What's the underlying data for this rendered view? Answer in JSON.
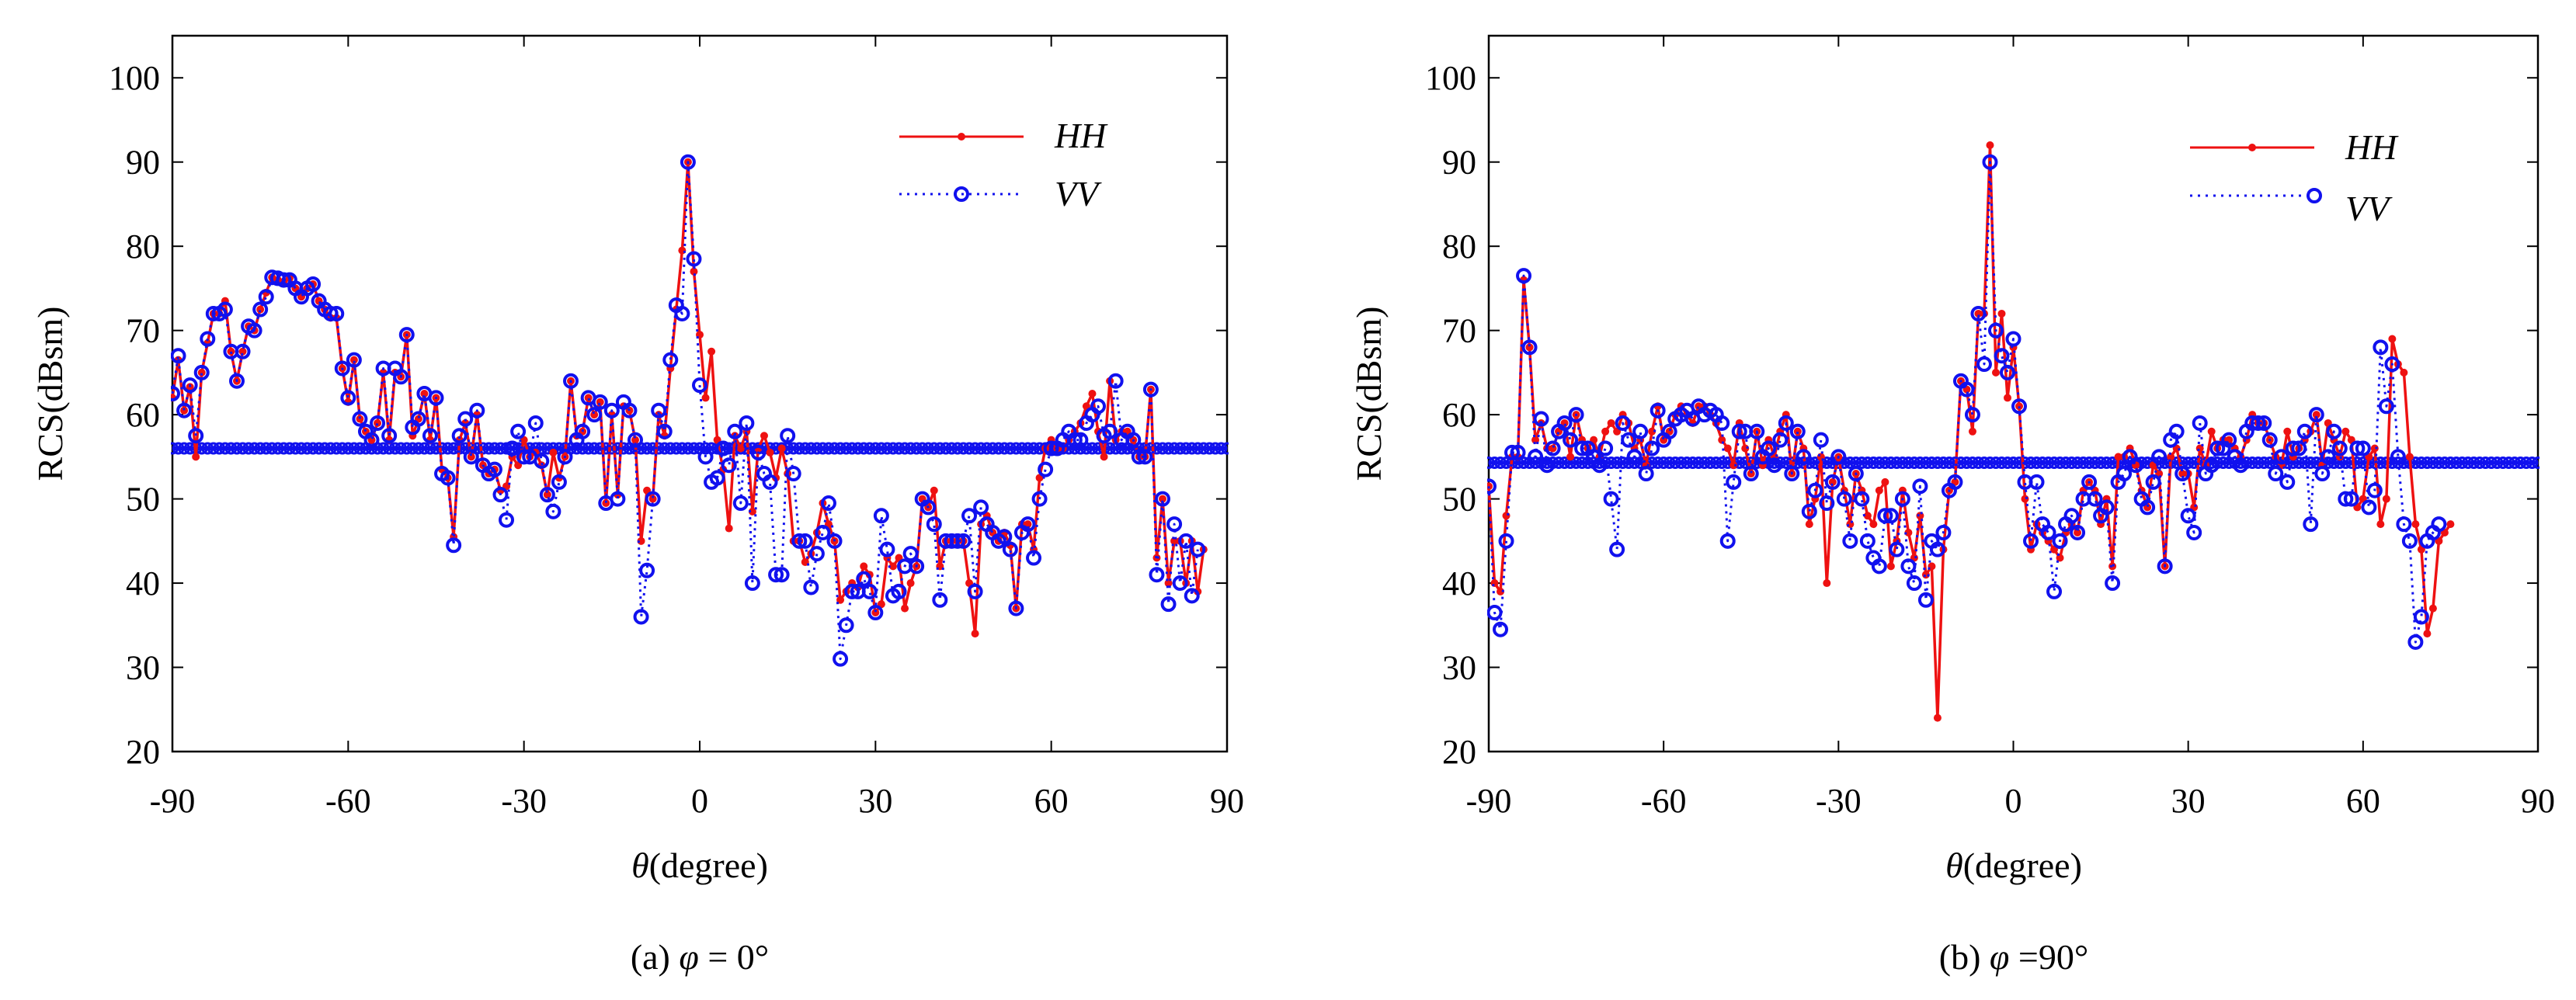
{
  "chart_data": [
    {
      "type": "line",
      "caption": "(a) φ = 0°",
      "caption_prefix": "(a)",
      "caption_symbol": "φ",
      "caption_suffix": " = 0°",
      "xlabel": "θ(degree)",
      "xlabel_symbol": "θ",
      "xlabel_rest": "(degree)",
      "ylabel": "RCS(dBsm)",
      "xlim": [
        -90,
        90
      ],
      "ylim": [
        20,
        105
      ],
      "xticks": [
        -90,
        -60,
        -30,
        0,
        30,
        60,
        90
      ],
      "yticks": [
        20,
        30,
        40,
        50,
        60,
        70,
        80,
        90,
        100
      ],
      "grid": false,
      "legend_position": "top-right",
      "baseline": 56,
      "x_step": 1,
      "series": [
        {
          "name": "HH",
          "color": "#ee1111",
          "style": "solid",
          "marker": "dot",
          "values": [
            62,
            66.5,
            60.5,
            63.3,
            55,
            65,
            68.5,
            72,
            72,
            73.5,
            67.5,
            64,
            67.5,
            70.5,
            70,
            72.5,
            74.5,
            76.3,
            76,
            75.8,
            76.2,
            75,
            74,
            75,
            75.5,
            73.5,
            72.5,
            71.5,
            71.5,
            65.5,
            61.5,
            66.5,
            59.5,
            58,
            57,
            59,
            65,
            57,
            65,
            64.5,
            69.5,
            57.5,
            59.5,
            62.5,
            57,
            62,
            53.5,
            52.5,
            45.5,
            57,
            59,
            55,
            60,
            54,
            53,
            53.5,
            51,
            51.5,
            55,
            54,
            57,
            55,
            55.5,
            54,
            50.5,
            55.5,
            52.5,
            55,
            64,
            57.5,
            58,
            62,
            60,
            61.5,
            49.5,
            60,
            50.5,
            61,
            60.5,
            57,
            45,
            51,
            50,
            60,
            57.5,
            65.5,
            72.5,
            79.5,
            90,
            77,
            69.5,
            62,
            67.5,
            57,
            53.5,
            46.5,
            57.5,
            56,
            58,
            48.5,
            56,
            57.5,
            55.5,
            52.5,
            56,
            53,
            45,
            45,
            42.5,
            43.5,
            46,
            49.5,
            47,
            45,
            38,
            39,
            40,
            39.5,
            42,
            41,
            36.5,
            37.5,
            43,
            42,
            43,
            37,
            40,
            42,
            50,
            49,
            51,
            42,
            45,
            45,
            45,
            45,
            40,
            34,
            47,
            48,
            46,
            45,
            46,
            44.5,
            37,
            47,
            47,
            44,
            52.5,
            56,
            57,
            56,
            56,
            57,
            58,
            59,
            61,
            62.5,
            58,
            55,
            64,
            57,
            58,
            58,
            57,
            55,
            55,
            63,
            43,
            50,
            40,
            45,
            45,
            40,
            45,
            39,
            44
          ]
        },
        {
          "name": "VV",
          "color": "#1111ee",
          "style": "dotted",
          "marker": "circle",
          "values": [
            62.5,
            67,
            60.5,
            63.5,
            57.5,
            65,
            69,
            72,
            72,
            72.5,
            67.5,
            64,
            67.5,
            70.5,
            70,
            72.5,
            74,
            76.3,
            76.2,
            76,
            76,
            75,
            74,
            75,
            75.5,
            73.5,
            72.5,
            72,
            72,
            65.5,
            62,
            66.5,
            59.5,
            58,
            57,
            59,
            65.5,
            57.5,
            65.5,
            64.5,
            69.5,
            58.5,
            59.5,
            62.5,
            57.5,
            62,
            53,
            52.5,
            44.5,
            57.5,
            59.5,
            55,
            60.5,
            54,
            53,
            53.5,
            50.5,
            47.5,
            56,
            58,
            55,
            55,
            59,
            54.5,
            50.5,
            48.5,
            52,
            55,
            64,
            57,
            58,
            62,
            60,
            61.5,
            49.5,
            60.5,
            50,
            61.5,
            60.5,
            57,
            36,
            41.5,
            50,
            60.5,
            58,
            66.5,
            73,
            72,
            90,
            78.5,
            63.5,
            55,
            52,
            52.5,
            56,
            54,
            58,
            49.5,
            59,
            40,
            55.5,
            53,
            52,
            41,
            41,
            57.5,
            53,
            45,
            45,
            39.5,
            43.5,
            46,
            49.5,
            45,
            31,
            35,
            39,
            39,
            40.5,
            39,
            36.5,
            48,
            44,
            38.5,
            39,
            42,
            43.5,
            42,
            50,
            49,
            47,
            38,
            45,
            45,
            45,
            45,
            48,
            39,
            49,
            47,
            46,
            45,
            45.5,
            44,
            37,
            46,
            47,
            43,
            50,
            53.5,
            56,
            56,
            57,
            58,
            57,
            57,
            59,
            60,
            61,
            57.5,
            58,
            64,
            57,
            58,
            57,
            55,
            55,
            63,
            41,
            50,
            37.5,
            47,
            40,
            45,
            38.5,
            44
          ]
        }
      ]
    },
    {
      "type": "line",
      "caption": "(b) φ =90°",
      "caption_prefix": "(b)",
      "caption_symbol": "φ",
      "caption_suffix": " =90°",
      "xlabel": "θ(degree)",
      "xlabel_symbol": "θ",
      "xlabel_rest": "(degree)",
      "ylabel": "RCS(dBsm)",
      "xlim": [
        -90,
        90
      ],
      "ylim": [
        20,
        105
      ],
      "xticks": [
        -90,
        -60,
        -30,
        0,
        30,
        60,
        90
      ],
      "yticks": [
        20,
        30,
        40,
        50,
        60,
        70,
        80,
        90,
        100
      ],
      "grid": false,
      "legend_position": "top-right",
      "baseline": 54.3,
      "x_step": 1,
      "series": [
        {
          "name": "HH",
          "color": "#ee1111",
          "style": "solid",
          "marker": "dot",
          "values": [
            51.5,
            40,
            39,
            48,
            55,
            55,
            76,
            68,
            57,
            59,
            56,
            56,
            58,
            59,
            55,
            60,
            57,
            56,
            57,
            55,
            58,
            59,
            58,
            60,
            59,
            56,
            57,
            54,
            58,
            61,
            57,
            58,
            60,
            61,
            60,
            59,
            61,
            61,
            60,
            59,
            57,
            56,
            54,
            59,
            56,
            53,
            58,
            54,
            57,
            55,
            58,
            60,
            53,
            58,
            56,
            47,
            50,
            55,
            40,
            52,
            55,
            51,
            47,
            53,
            51,
            48,
            47,
            51,
            52,
            42,
            45,
            51,
            46,
            43,
            48,
            41,
            42,
            24,
            44,
            51,
            52,
            64,
            63,
            58,
            72,
            72,
            92,
            65,
            72,
            62,
            68,
            61,
            50,
            44,
            47,
            46,
            45,
            44,
            43,
            46,
            47,
            46,
            51,
            52,
            51,
            47,
            50,
            42,
            55,
            55,
            56,
            54,
            51,
            49,
            54,
            53,
            42,
            55,
            56,
            53,
            53,
            49,
            56,
            54,
            58,
            56,
            57,
            57,
            56,
            55,
            57,
            60,
            59,
            59,
            57,
            55,
            54,
            58,
            55,
            56,
            57,
            58,
            60,
            54,
            59,
            57,
            55,
            58,
            57,
            49,
            50,
            55,
            56,
            47,
            50,
            69,
            66,
            65,
            55,
            47,
            44,
            34,
            37,
            45,
            46,
            47
          ]
        },
        {
          "name": "VV",
          "color": "#1111ee",
          "style": "dotted",
          "marker": "circle",
          "values": [
            51.5,
            36.5,
            34.5,
            45,
            55.5,
            55.5,
            76.5,
            68,
            55,
            59.5,
            54,
            56,
            58,
            59,
            57,
            60,
            56,
            56,
            55,
            54,
            56,
            50,
            44,
            59,
            57,
            55,
            58,
            53,
            56,
            60.5,
            57,
            58,
            59.5,
            60,
            60.5,
            59.5,
            61,
            60,
            60.5,
            60,
            59,
            45,
            52,
            58,
            58,
            53,
            58,
            55,
            56,
            54,
            57,
            59,
            53,
            58,
            55,
            48.5,
            51,
            57,
            49.5,
            52,
            55,
            50,
            45,
            53,
            50,
            45,
            43,
            42,
            48,
            48,
            44,
            50,
            42,
            40,
            51.5,
            38,
            45,
            44,
            46,
            51,
            52,
            64,
            63,
            60,
            72,
            66,
            90,
            70,
            67,
            65,
            69,
            61,
            52,
            45,
            52,
            47,
            46,
            39,
            45,
            47,
            48,
            46,
            50,
            52,
            50,
            48,
            49,
            40,
            52,
            53,
            55,
            54,
            50,
            49,
            52,
            55,
            42,
            57,
            58,
            53,
            48,
            46,
            59,
            53,
            54,
            56,
            56,
            57,
            55,
            54,
            58,
            59,
            59,
            59,
            57,
            53,
            55,
            52,
            56,
            56,
            58,
            47,
            60,
            53,
            55,
            58,
            56,
            50,
            50,
            56,
            56,
            49,
            51,
            68,
            61,
            66,
            55,
            47,
            45,
            33,
            36,
            45,
            46,
            47
          ]
        }
      ]
    }
  ]
}
